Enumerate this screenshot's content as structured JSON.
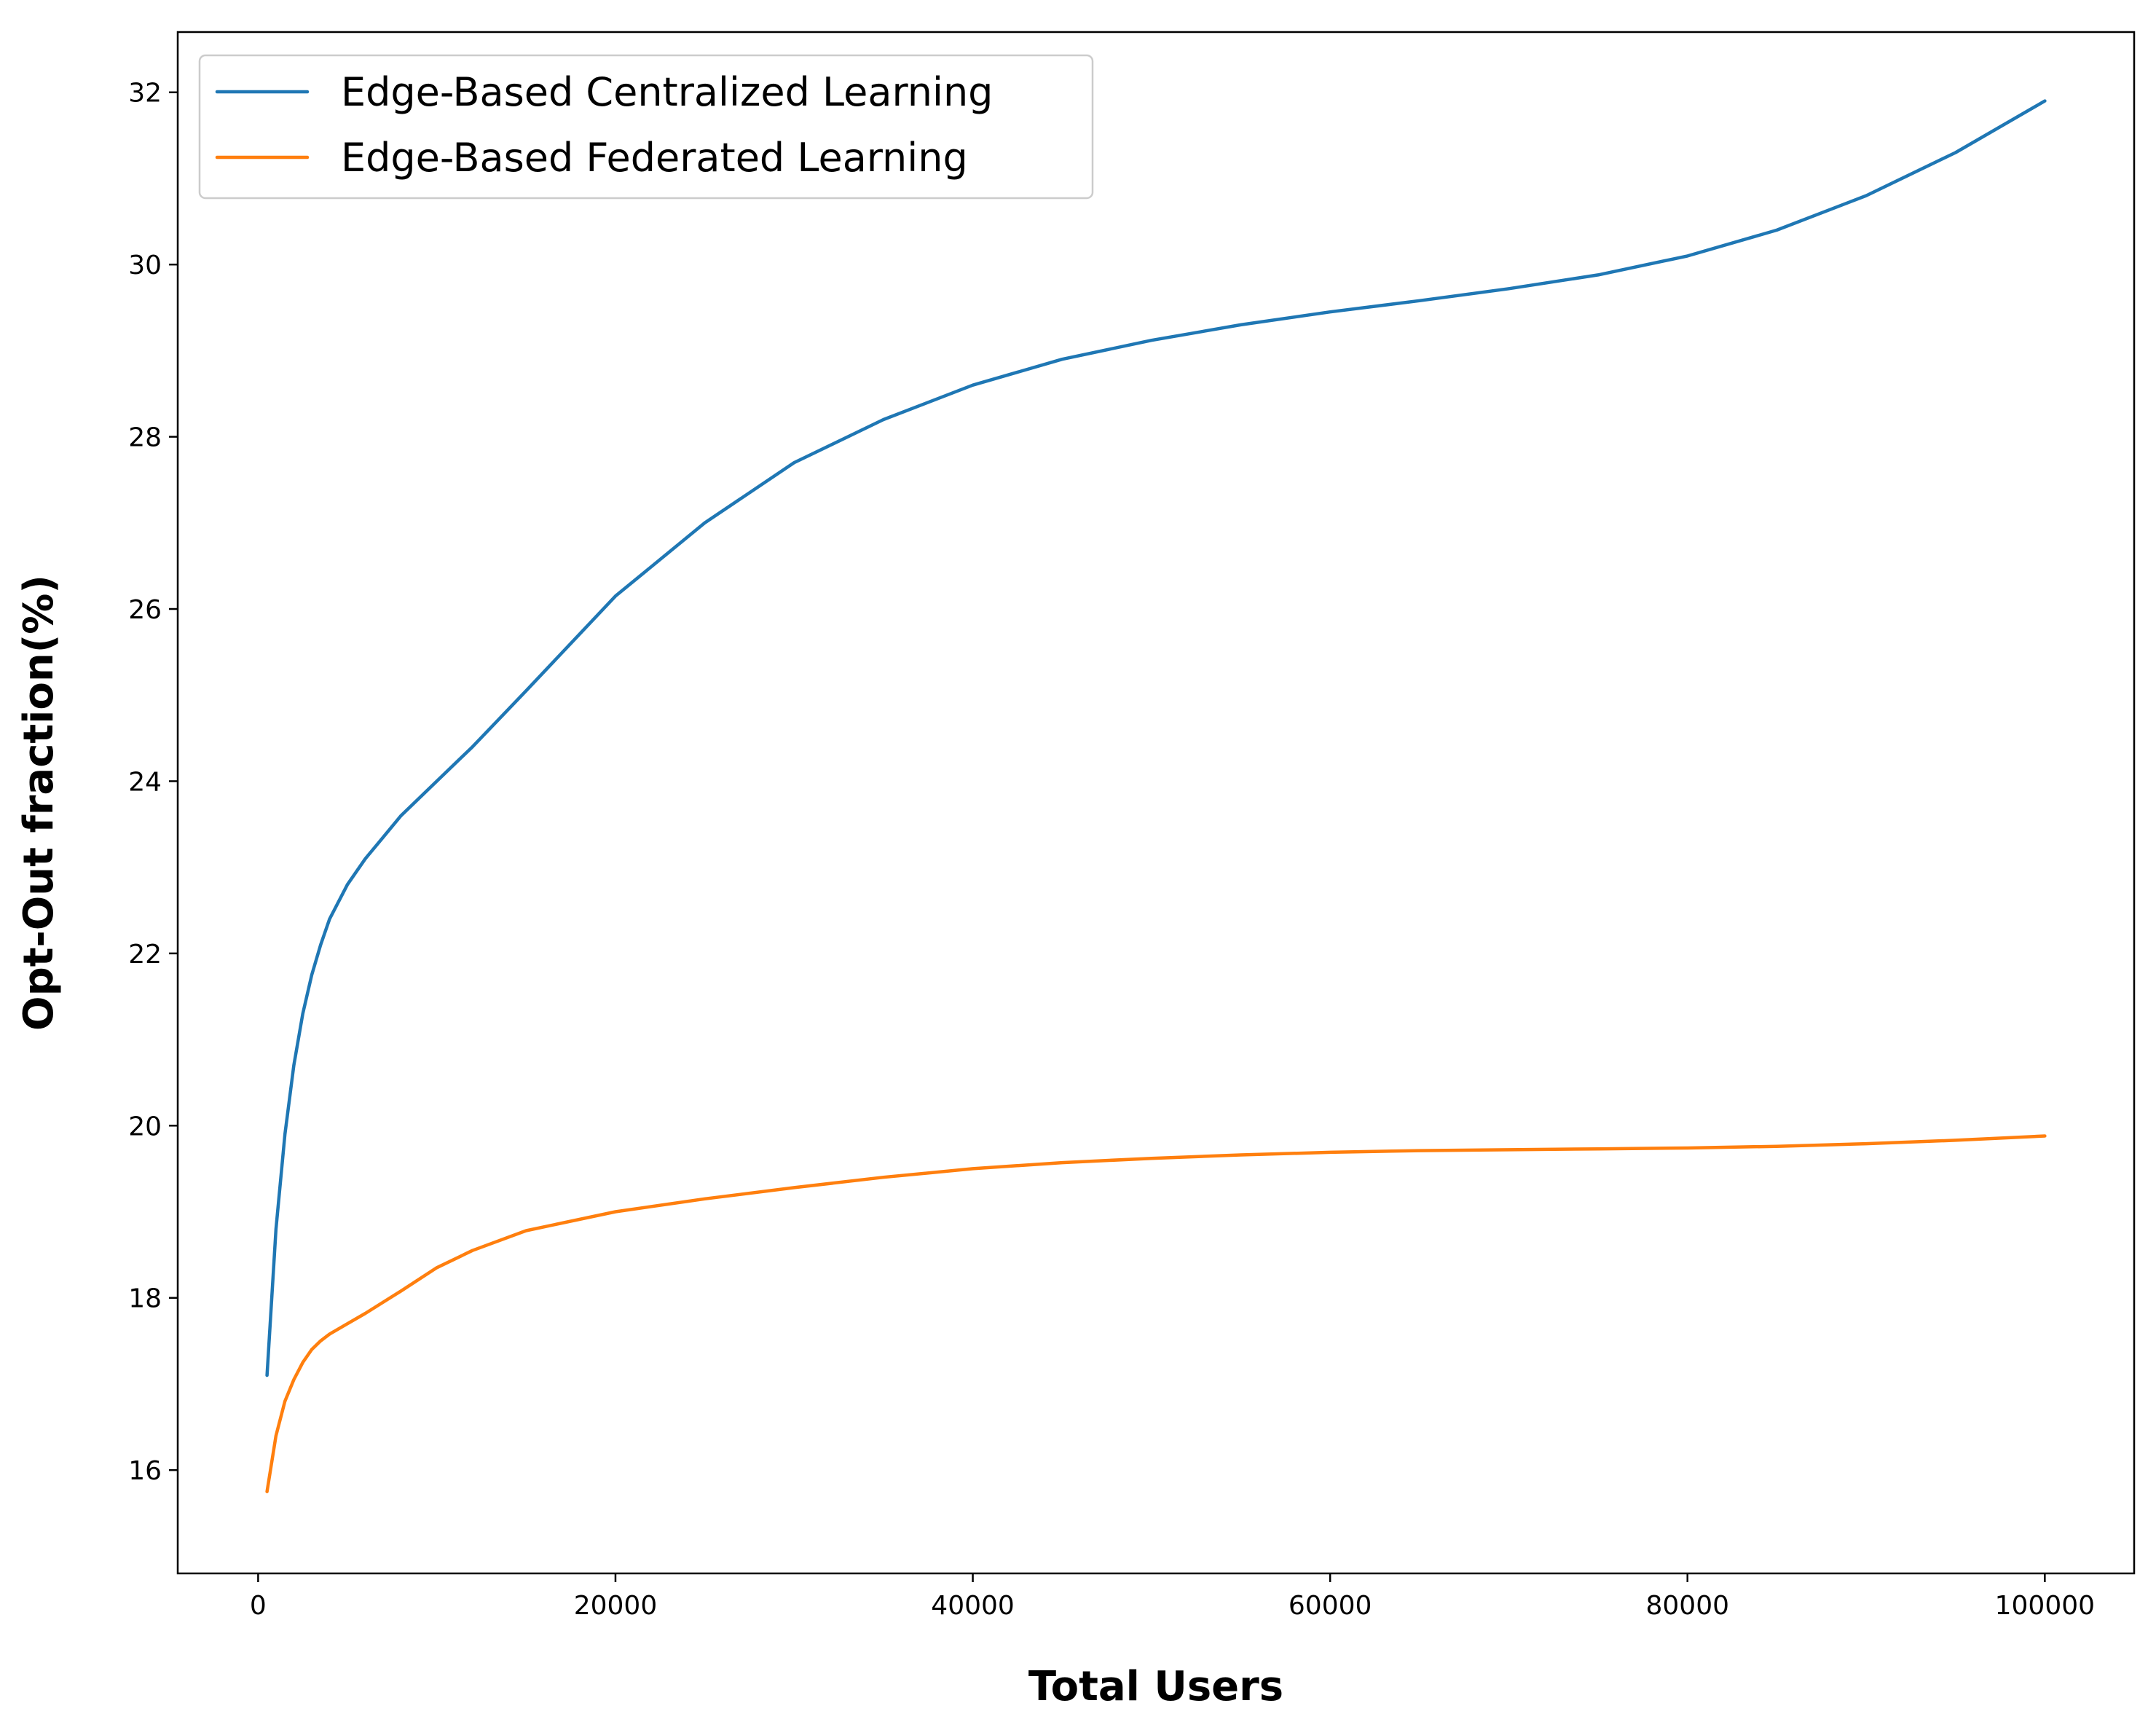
{
  "chart_data": {
    "type": "line",
    "title": "",
    "xlabel": "Total Users",
    "ylabel": "Opt-Out fraction(%)",
    "xlim": [
      -4500,
      105000
    ],
    "ylim": [
      14.8,
      32.7
    ],
    "xticks": [
      0,
      20000,
      40000,
      60000,
      80000,
      100000
    ],
    "yticks": [
      16,
      18,
      20,
      22,
      24,
      26,
      28,
      30,
      32
    ],
    "grid": false,
    "legend_position": "top-left",
    "series": [
      {
        "name": "Edge-Based Centralized Learning",
        "color": "#1f77b4",
        "x": [
          500,
          1000,
          1500,
          2000,
          2500,
          3000,
          3500,
          4000,
          5000,
          6000,
          7000,
          8000,
          10000,
          12000,
          15000,
          20000,
          25000,
          30000,
          35000,
          40000,
          45000,
          50000,
          55000,
          60000,
          65000,
          70000,
          75000,
          80000,
          85000,
          90000,
          95000,
          100000
        ],
        "y": [
          17.1,
          18.8,
          19.9,
          20.7,
          21.3,
          21.75,
          22.1,
          22.4,
          22.8,
          23.1,
          23.35,
          23.6,
          24.0,
          24.4,
          25.05,
          26.15,
          27.0,
          27.7,
          28.2,
          28.6,
          28.9,
          29.12,
          29.3,
          29.45,
          29.58,
          29.72,
          29.88,
          30.1,
          30.4,
          30.8,
          31.3,
          31.9
        ]
      },
      {
        "name": "Edge-Based Federated Learning",
        "color": "#ff7f0e",
        "x": [
          500,
          1000,
          1500,
          2000,
          2500,
          3000,
          3500,
          4000,
          5000,
          6000,
          7000,
          8000,
          10000,
          12000,
          15000,
          20000,
          25000,
          30000,
          35000,
          40000,
          45000,
          50000,
          55000,
          60000,
          65000,
          70000,
          75000,
          80000,
          85000,
          90000,
          95000,
          100000
        ],
        "y": [
          15.75,
          16.4,
          16.8,
          17.05,
          17.25,
          17.4,
          17.5,
          17.58,
          17.7,
          17.82,
          17.95,
          18.08,
          18.35,
          18.55,
          18.78,
          19.0,
          19.15,
          19.28,
          19.4,
          19.5,
          19.57,
          19.62,
          19.66,
          19.69,
          19.71,
          19.72,
          19.73,
          19.74,
          19.76,
          19.79,
          19.83,
          19.88
        ]
      }
    ]
  }
}
